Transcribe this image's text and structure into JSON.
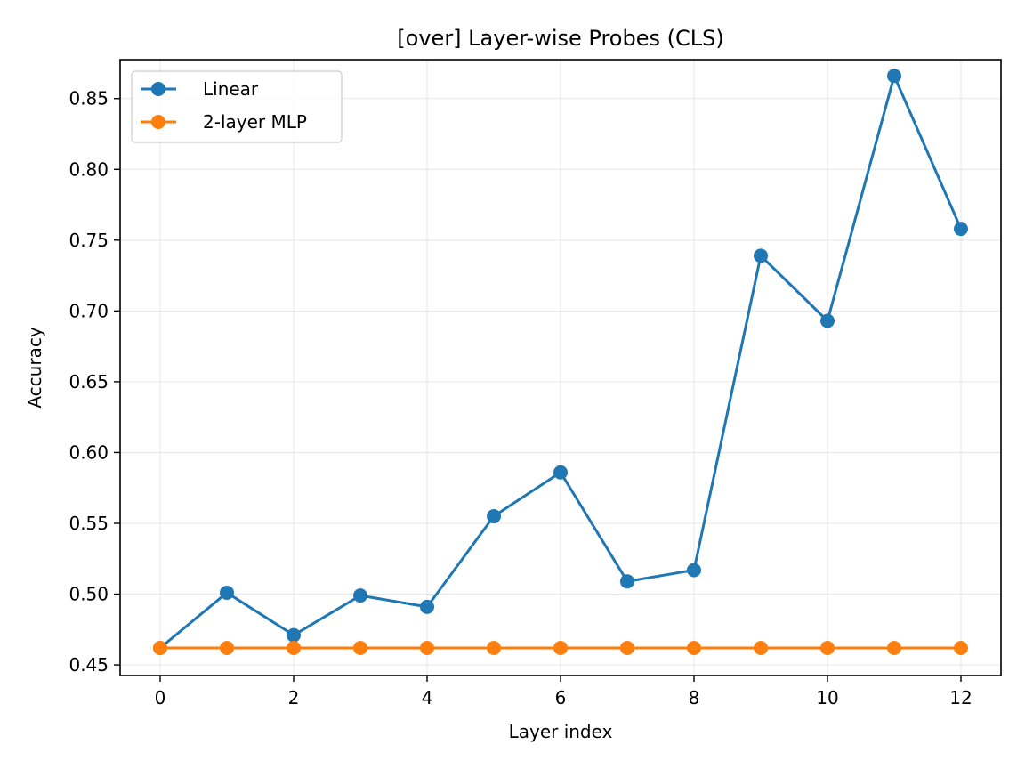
{
  "chart_data": {
    "type": "line",
    "title": "[over] Layer-wise Probes (CLS)",
    "xlabel": "Layer index",
    "ylabel": "Accuracy",
    "xlim": [
      -0.6,
      12.6
    ],
    "ylim": [
      0.4425,
      0.8775
    ],
    "xticks": [
      0,
      2,
      4,
      6,
      8,
      10,
      12
    ],
    "xtick_labels": [
      "0",
      "2",
      "4",
      "6",
      "8",
      "10",
      "12"
    ],
    "yticks": [
      0.45,
      0.5,
      0.55,
      0.6,
      0.65,
      0.7,
      0.75,
      0.8,
      0.85
    ],
    "ytick_labels": [
      "0.45",
      "0.50",
      "0.55",
      "0.60",
      "0.65",
      "0.70",
      "0.75",
      "0.80",
      "0.85"
    ],
    "grid": true,
    "legend_position": "top-left",
    "x": [
      0,
      1,
      2,
      3,
      4,
      5,
      6,
      7,
      8,
      9,
      10,
      11,
      12
    ],
    "series": [
      {
        "name": "Linear",
        "color": "#1f77b4",
        "marker": "circle",
        "values": [
          0.462,
          0.501,
          0.471,
          0.499,
          0.491,
          0.555,
          0.586,
          0.509,
          0.517,
          0.739,
          0.693,
          0.866,
          0.758
        ]
      },
      {
        "name": "2-layer MLP",
        "color": "#ff7f0e",
        "marker": "circle",
        "values": [
          0.462,
          0.462,
          0.462,
          0.462,
          0.462,
          0.462,
          0.462,
          0.462,
          0.462,
          0.462,
          0.462,
          0.462,
          0.462
        ]
      }
    ]
  }
}
